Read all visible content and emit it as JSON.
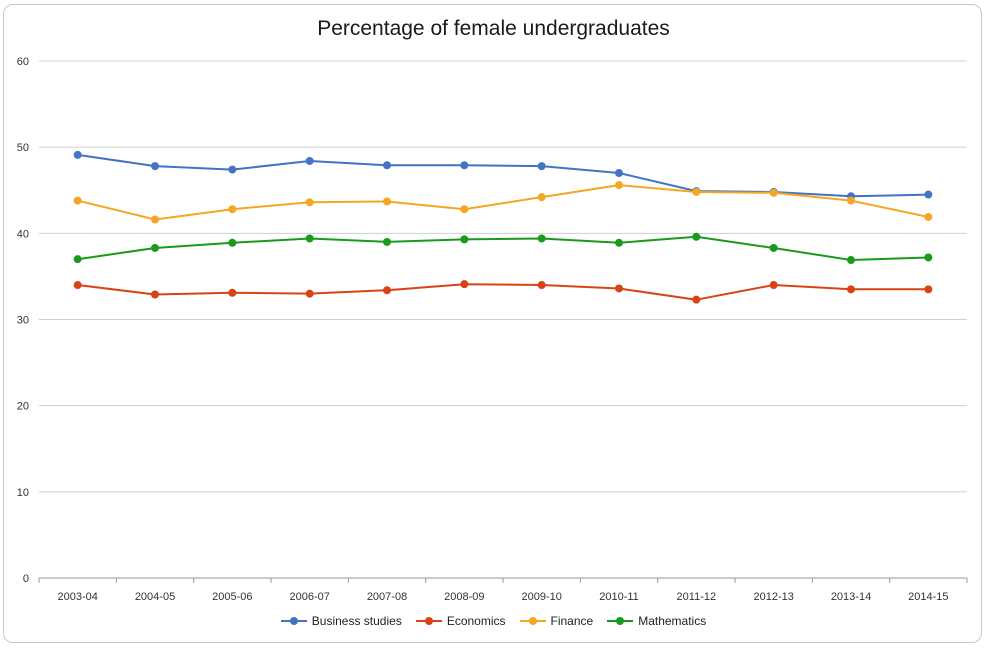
{
  "chart_data": {
    "type": "line",
    "title": "Percentage of female undergraduates",
    "xlabel": "",
    "ylabel": "",
    "ylim": [
      0,
      60
    ],
    "yticks": [
      0,
      10,
      20,
      30,
      40,
      50,
      60
    ],
    "grid": true,
    "legend_position": "bottom",
    "categories": [
      "2003-04",
      "2004-05",
      "2005-06",
      "2006-07",
      "2007-08",
      "2008-09",
      "2009-10",
      "2010-11",
      "2011-12",
      "2012-13",
      "2013-14",
      "2014-15"
    ],
    "series": [
      {
        "name": "Business studies",
        "color": "#4472c4",
        "values": [
          49.1,
          47.8,
          47.4,
          48.4,
          47.9,
          47.9,
          47.8,
          47.0,
          44.9,
          44.8,
          44.3,
          44.5
        ]
      },
      {
        "name": "Economics",
        "color": "#d84315",
        "values": [
          34.0,
          32.9,
          33.1,
          33.0,
          33.4,
          34.1,
          34.0,
          33.6,
          32.3,
          34.0,
          33.5,
          33.5
        ]
      },
      {
        "name": "Finance",
        "color": "#f5a623",
        "values": [
          43.8,
          41.6,
          42.8,
          43.6,
          43.7,
          42.8,
          44.2,
          45.6,
          44.8,
          44.7,
          43.8,
          41.9
        ]
      },
      {
        "name": "Mathematics",
        "color": "#1a9a1a",
        "values": [
          37.0,
          38.3,
          38.9,
          39.4,
          39.0,
          39.3,
          39.4,
          38.9,
          39.6,
          38.3,
          36.9,
          37.2
        ]
      }
    ]
  }
}
